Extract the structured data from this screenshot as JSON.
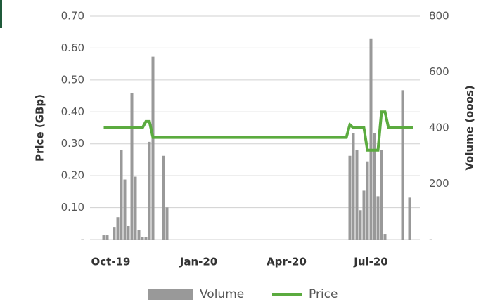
{
  "chart_data": {
    "type": "bar_line",
    "y_label": "Price (GBp)",
    "y2_label": "Volume (ooos)",
    "categories": [
      null,
      null,
      null,
      "Oct-19",
      null,
      null,
      null,
      null,
      null,
      null,
      null,
      null,
      null,
      null,
      null,
      null,
      null,
      null,
      null,
      null,
      null,
      null,
      null,
      null,
      null,
      null,
      null,
      null,
      "Jan-20",
      null,
      null,
      null,
      null,
      null,
      null,
      null,
      null,
      null,
      null,
      null,
      null,
      null,
      null,
      null,
      null,
      null,
      null,
      null,
      null,
      null,
      null,
      null,
      null,
      "Apr-20",
      null,
      null,
      null,
      null,
      null,
      null,
      null,
      null,
      null,
      null,
      null,
      null,
      null,
      null,
      null,
      null,
      null,
      null,
      null,
      null,
      null,
      null,
      null,
      "Jul-20",
      null,
      null,
      null,
      null,
      null,
      null,
      null,
      null,
      null,
      null,
      null,
      null
    ],
    "series": [
      {
        "name": "Volume",
        "kind": "bar",
        "axis": "y2",
        "color": "#999999",
        "values": [
          0,
          15,
          15,
          0,
          45,
          80,
          320,
          215,
          50,
          525,
          225,
          35,
          10,
          10,
          350,
          655,
          0,
          0,
          300,
          115,
          0,
          0,
          0,
          0,
          0,
          0,
          0,
          0,
          0,
          0,
          0,
          0,
          0,
          0,
          0,
          0,
          0,
          0,
          0,
          0,
          0,
          0,
          0,
          0,
          0,
          0,
          0,
          0,
          0,
          0,
          0,
          0,
          0,
          0,
          0,
          0,
          0,
          0,
          0,
          0,
          0,
          0,
          0,
          0,
          0,
          0,
          0,
          0,
          0,
          0,
          0,
          300,
          380,
          320,
          105,
          175,
          280,
          720,
          380,
          155,
          320,
          20,
          0,
          0,
          0,
          0,
          535,
          0,
          150,
          0
        ]
      },
      {
        "name": "Price",
        "kind": "line",
        "axis": "y",
        "color": "#5bab3f",
        "values": [
          null,
          0.35,
          0.35,
          0.35,
          0.35,
          0.35,
          0.35,
          0.35,
          0.35,
          0.35,
          0.35,
          0.35,
          0.35,
          0.37,
          0.37,
          0.32,
          0.32,
          0.32,
          0.32,
          0.32,
          0.32,
          0.32,
          0.32,
          0.32,
          0.32,
          0.32,
          0.32,
          0.32,
          0.32,
          0.32,
          0.32,
          0.32,
          0.32,
          0.32,
          0.32,
          0.32,
          0.32,
          0.32,
          0.32,
          0.32,
          0.32,
          0.32,
          0.32,
          0.32,
          0.32,
          0.32,
          0.32,
          0.32,
          0.32,
          0.32,
          0.32,
          0.32,
          0.32,
          0.32,
          0.32,
          0.32,
          0.32,
          0.32,
          0.32,
          0.32,
          0.32,
          0.32,
          0.32,
          0.32,
          0.32,
          0.32,
          0.32,
          0.32,
          0.32,
          0.32,
          0.32,
          0.36,
          0.35,
          0.35,
          0.35,
          0.35,
          0.28,
          0.28,
          0.28,
          0.28,
          0.4,
          0.4,
          0.35,
          0.35,
          0.35,
          0.35,
          0.35,
          0.35,
          0.35,
          0.35
        ]
      }
    ],
    "ylim": [
      0,
      0.7
    ],
    "yticks": [
      {
        "value": 0,
        "label": "-"
      },
      {
        "value": 0.1,
        "label": "0.10"
      },
      {
        "value": 0.2,
        "label": "0.20"
      },
      {
        "value": 0.3,
        "label": "0.30"
      },
      {
        "value": 0.4,
        "label": "0.40"
      },
      {
        "value": 0.5,
        "label": "0.50"
      },
      {
        "value": 0.6,
        "label": "0.60"
      },
      {
        "value": 0.7,
        "label": "0.70"
      }
    ],
    "y2lim": [
      0,
      800
    ],
    "y2ticks": [
      {
        "value": 0,
        "label": "-"
      },
      200,
      400,
      600,
      800
    ],
    "grid": true
  }
}
